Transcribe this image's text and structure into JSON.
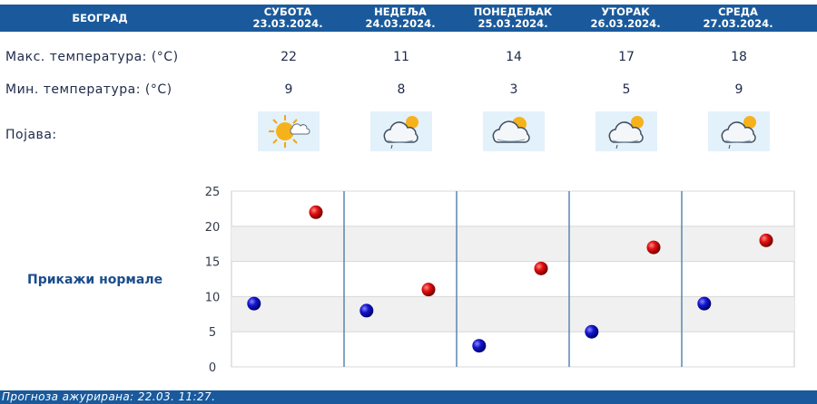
{
  "header": {
    "city": "БЕОГРАД",
    "days": [
      {
        "name": "СУБОТА",
        "date": "23.03.2024."
      },
      {
        "name": "НЕДЕЉА",
        "date": "24.03.2024."
      },
      {
        "name": "ПОНЕДЕЉАК",
        "date": "25.03.2024."
      },
      {
        "name": "УТОРАК",
        "date": "26.03.2024."
      },
      {
        "name": "СРЕДА",
        "date": "27.03.2024."
      }
    ]
  },
  "rows": {
    "max_label": "Макс. температура: (°C)",
    "min_label": "Мин. температура: (°C)",
    "phenomenon_label": "Појава:",
    "max_values": [
      "22",
      "11",
      "14",
      "17",
      "18"
    ],
    "min_values": [
      "9",
      "8",
      "3",
      "5",
      "9"
    ],
    "icons": [
      "sun-cloud-icon",
      "cloud-sun-rain-icon",
      "cloud-sun-icon",
      "cloud-sun-rain-icon",
      "cloud-sun-rain-icon"
    ]
  },
  "normals_link": "Прикажи нормале",
  "footer": "Прогноза ажурирана:  22.03.  11:27.",
  "colors": {
    "header": "#1a5a9c",
    "max_marker": "#cc0000",
    "min_marker": "#1010c8"
  },
  "chart_data": {
    "type": "scatter",
    "categories": [
      "23.03.2024.",
      "24.03.2024.",
      "25.03.2024.",
      "26.03.2024.",
      "27.03.2024."
    ],
    "series": [
      {
        "values": [
          9,
          8,
          3,
          5,
          9
        ]
      },
      {
        "values": [
          22,
          11,
          14,
          17,
          18
        ]
      }
    ],
    "ylim": [
      0,
      25
    ],
    "yticks": [
      "0",
      "5",
      "10",
      "15",
      "20",
      "25"
    ],
    "grid": true,
    "banded_background": true
  }
}
